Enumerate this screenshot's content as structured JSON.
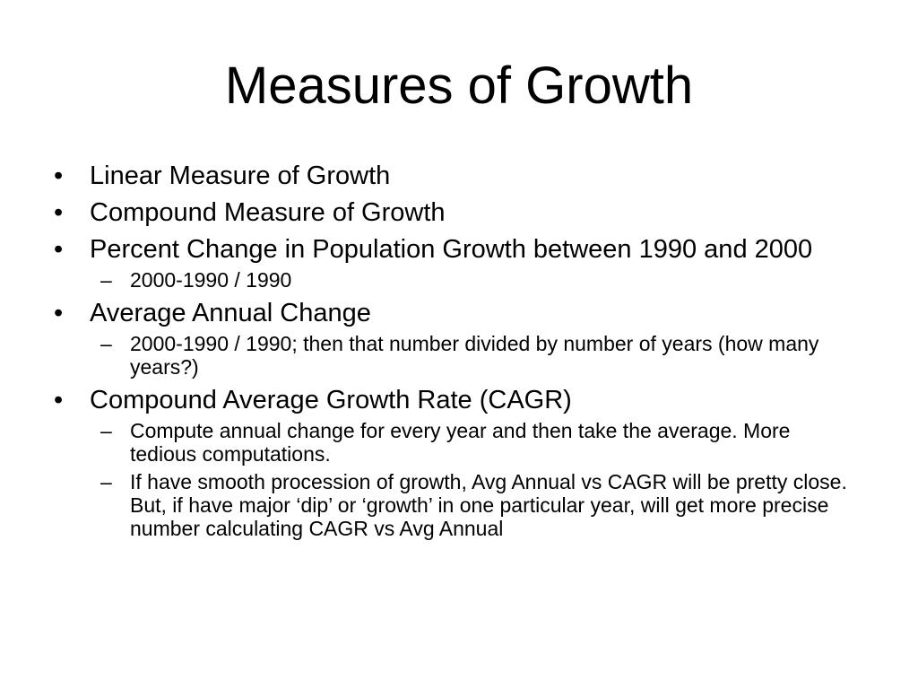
{
  "slide": {
    "title": "Measures of Growth",
    "bullet_symbol": "•",
    "dash_symbol": "–",
    "items": [
      {
        "text": "Linear Measure of Growth"
      },
      {
        "text": "Compound Measure of Growth"
      },
      {
        "text": "Percent Change in Population Growth between 1990 and 2000",
        "subitems": [
          " 2000-1990 / 1990"
        ]
      },
      {
        "text": "Average Annual Change",
        "subitems": [
          "2000-1990 / 1990; then that number divided by number of years (how many years?)"
        ]
      },
      {
        "text": "Compound Average Growth Rate (CAGR)",
        "subitems": [
          "Compute annual change for every year and then take the average.  More tedious computations.",
          "If have smooth procession of growth, Avg Annual vs CAGR will be pretty close.  But, if have major ‘dip’ or ‘growth’ in one particular year, will get more precise number calculating CAGR vs Avg Annual"
        ]
      }
    ]
  }
}
